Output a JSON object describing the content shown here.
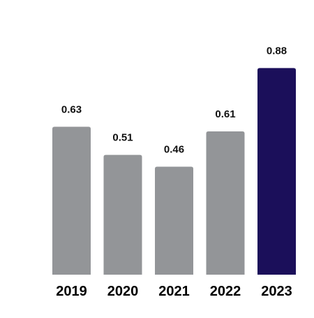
{
  "chart_data": {
    "type": "bar",
    "categories": [
      "2019",
      "2020",
      "2021",
      "2022",
      "2023"
    ],
    "values": [
      0.63,
      0.51,
      0.46,
      0.61,
      0.88
    ],
    "value_labels": [
      "0.63",
      "0.51",
      "0.46",
      "0.61",
      "0.88"
    ],
    "title": "",
    "xlabel": "",
    "ylabel": "",
    "ylim": [
      0,
      1.0
    ],
    "grid": false,
    "legend": "none",
    "colors": {
      "default_bar": "#939598",
      "highlight_bar": "#1b0f5a",
      "highlight_category": "2023"
    }
  }
}
